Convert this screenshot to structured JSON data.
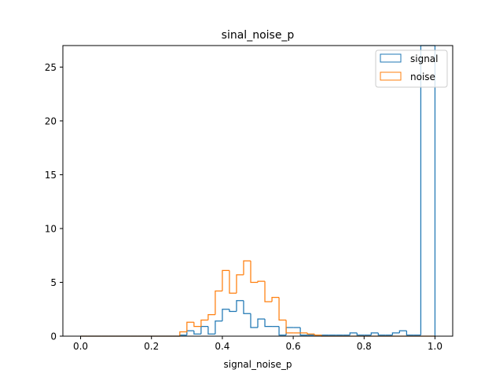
{
  "chart_data": {
    "type": "histogram",
    "title": "sinal_noise_p",
    "xlabel": "signal_noise_p",
    "ylabel": "",
    "xlim": [
      -0.05,
      1.05
    ],
    "ylim": [
      0,
      27
    ],
    "xticks": [
      0.0,
      0.2,
      0.4,
      0.6,
      0.8,
      1.0
    ],
    "xtick_labels": [
      "0.0",
      "0.2",
      "0.4",
      "0.6",
      "0.8",
      "1.0"
    ],
    "yticks": [
      0,
      5,
      10,
      15,
      20,
      25
    ],
    "ytick_labels": [
      "0",
      "5",
      "10",
      "15",
      "20",
      "25"
    ],
    "grid": false,
    "legend_position": "top-right",
    "bin_edges_start": 0.0,
    "bin_width": 0.02,
    "series": [
      {
        "name": "signal",
        "color": "#1f77b4",
        "values": [
          0,
          0,
          0,
          0,
          0,
          0,
          0,
          0,
          0,
          0,
          0,
          0,
          0,
          0,
          0.1,
          0.5,
          0.2,
          0.9,
          0.2,
          1.4,
          2.5,
          2.3,
          3.3,
          2.1,
          0.8,
          1.6,
          0.9,
          0.9,
          0.1,
          0.8,
          0.8,
          0.1,
          0.1,
          0.1,
          0.1,
          0.1,
          0.1,
          0.1,
          0.3,
          0.1,
          0.1,
          0.3,
          0.1,
          0.1,
          0.3,
          0.5,
          0.1,
          0.1,
          27.0,
          27.0
        ]
      },
      {
        "name": "noise",
        "color": "#ff7f0e",
        "values": [
          0,
          0,
          0,
          0,
          0,
          0,
          0,
          0,
          0,
          0,
          0,
          0,
          0,
          0,
          0.4,
          1.3,
          0.9,
          1.5,
          2.0,
          4.2,
          6.1,
          4.0,
          5.7,
          7.0,
          5.0,
          5.1,
          3.2,
          3.6,
          1.5,
          0.3,
          0.3,
          0.3,
          0.2,
          0.1,
          0,
          0,
          0,
          0,
          0,
          0,
          0,
          0,
          0,
          0,
          0,
          0,
          0,
          0,
          0,
          0
        ]
      }
    ]
  }
}
